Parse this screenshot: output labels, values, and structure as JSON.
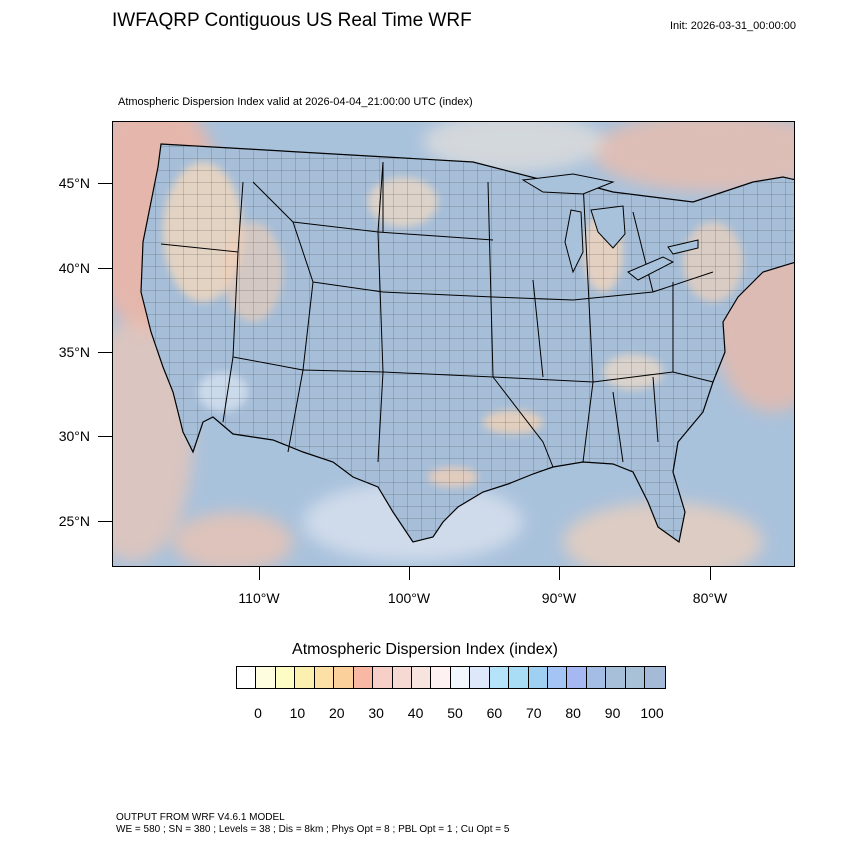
{
  "header": {
    "title": "IWFAQRP Contiguous US Real Time WRF",
    "init": "Init: 2026-03-31_00:00:00",
    "subtitle": "Atmospheric Dispersion Index valid at 2026-04-04_21:00:00 UTC   (index)"
  },
  "map": {
    "lat_labels": [
      "45°N",
      "40°N",
      "35°N",
      "30°N",
      "25°N"
    ],
    "lon_labels": [
      "110°W",
      "100°W",
      "90°W",
      "80°W"
    ],
    "colors": {
      "ocean_low": "#f4b7a6",
      "land_high": "#a9c2dc",
      "mid": "#f5e0c8",
      "borders": "#000000"
    }
  },
  "legend": {
    "title": "Atmospheric Dispersion Index  (index)",
    "labels": [
      "0",
      "10",
      "20",
      "30",
      "40",
      "50",
      "60",
      "70",
      "80",
      "90",
      "100"
    ],
    "colors": [
      "#ffffff",
      "#fefde0",
      "#fdfcc4",
      "#fbf0b0",
      "#fde0a6",
      "#fcd09a",
      "#f9b8a4",
      "#f6cfc6",
      "#f5d9d2",
      "#f8e4df",
      "#fdf1f1",
      "#f2f6fd",
      "#dde9fb",
      "#b5e3fa",
      "#a9dcf5",
      "#9fd0f1",
      "#a3c4f5",
      "#a5b8f2",
      "#a4bde5",
      "#a7bfd9",
      "#a9c1d7",
      "#a5bad6"
    ]
  },
  "footer": {
    "line1": "OUTPUT FROM WRF V4.6.1 MODEL",
    "line2": "WE = 580 ; SN = 380 ; Levels = 38 ; Dis = 8km ; Phys Opt = 8 ; PBL Opt = 1 ; Cu Opt = 5"
  }
}
